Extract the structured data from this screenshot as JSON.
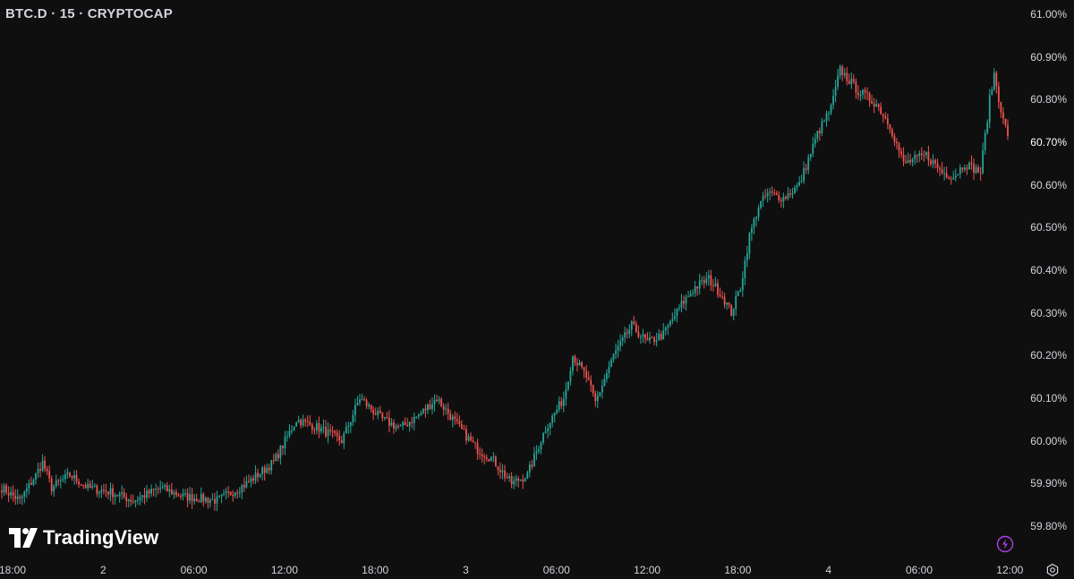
{
  "header": {
    "symbol_title": "BTC.D · 15 · CRYPTOCAP"
  },
  "branding": {
    "logo_text": "TradingView"
  },
  "icons": {
    "alert": "lightning-bolt-icon",
    "settings": "settings-icon",
    "logo": "tradingview-logo-icon"
  },
  "colors": {
    "background": "#0f0f0f",
    "up": "#26a69a",
    "down": "#ef5350",
    "text": "#d1d4dc",
    "accent": "#b03ee8"
  },
  "chart_data": {
    "type": "candlestick",
    "title": "BTC.D · 15 · CRYPTOCAP",
    "xlabel": "",
    "ylabel": "",
    "y_unit": "%",
    "ylim": [
      59.77,
      61.02
    ],
    "yticks": [
      {
        "value": 61.0,
        "label": "61.00%"
      },
      {
        "value": 60.9,
        "label": "60.90%"
      },
      {
        "value": 60.8,
        "label": "60.80%"
      },
      {
        "value": 60.7,
        "label": "60.70%"
      },
      {
        "value": 60.6,
        "label": "60.60%"
      },
      {
        "value": 60.5,
        "label": "60.50%"
      },
      {
        "value": 60.4,
        "label": "60.40%"
      },
      {
        "value": 60.3,
        "label": "60.30%"
      },
      {
        "value": 60.2,
        "label": "60.20%"
      },
      {
        "value": 60.1,
        "label": "60.10%"
      },
      {
        "value": 60.0,
        "label": "60.00%"
      },
      {
        "value": 59.9,
        "label": "59.90%"
      },
      {
        "value": 59.8,
        "label": "59.80%"
      }
    ],
    "current_value_label": "60.70%",
    "xticks": [
      "18:00",
      "2",
      "06:00",
      "12:00",
      "18:00",
      "3",
      "06:00",
      "12:00",
      "18:00",
      "4",
      "06:00",
      "12:00"
    ],
    "anchors": [
      [
        0,
        59.89
      ],
      [
        8,
        59.86
      ],
      [
        15,
        59.92
      ],
      [
        18,
        59.95
      ],
      [
        22,
        59.89
      ],
      [
        30,
        59.92
      ],
      [
        38,
        59.89
      ],
      [
        48,
        59.88
      ],
      [
        58,
        59.86
      ],
      [
        70,
        59.89
      ],
      [
        80,
        59.87
      ],
      [
        95,
        59.86
      ],
      [
        108,
        59.9
      ],
      [
        120,
        59.95
      ],
      [
        130,
        60.05
      ],
      [
        140,
        60.03
      ],
      [
        150,
        60.0
      ],
      [
        158,
        60.1
      ],
      [
        168,
        60.05
      ],
      [
        176,
        60.03
      ],
      [
        184,
        60.06
      ],
      [
        192,
        60.1
      ],
      [
        202,
        60.03
      ],
      [
        210,
        59.98
      ],
      [
        216,
        59.96
      ],
      [
        225,
        59.9
      ],
      [
        232,
        59.92
      ],
      [
        240,
        60.03
      ],
      [
        248,
        60.1
      ],
      [
        252,
        60.2
      ],
      [
        258,
        60.15
      ],
      [
        262,
        60.09
      ],
      [
        270,
        60.2
      ],
      [
        278,
        60.27
      ],
      [
        285,
        60.23
      ],
      [
        292,
        60.25
      ],
      [
        300,
        60.32
      ],
      [
        306,
        60.36
      ],
      [
        312,
        60.38
      ],
      [
        318,
        60.34
      ],
      [
        322,
        60.3
      ],
      [
        326,
        60.36
      ],
      [
        330,
        60.48
      ],
      [
        334,
        60.55
      ],
      [
        338,
        60.58
      ],
      [
        345,
        60.57
      ],
      [
        352,
        60.6
      ],
      [
        360,
        60.72
      ],
      [
        366,
        60.78
      ],
      [
        370,
        60.87
      ],
      [
        378,
        60.82
      ],
      [
        386,
        60.79
      ],
      [
        392,
        60.74
      ],
      [
        398,
        60.65
      ],
      [
        408,
        60.67
      ],
      [
        415,
        60.63
      ],
      [
        420,
        60.62
      ],
      [
        425,
        60.65
      ],
      [
        432,
        60.63
      ],
      [
        436,
        60.8
      ],
      [
        438,
        60.86
      ],
      [
        442,
        60.75
      ],
      [
        444,
        60.72
      ]
    ]
  }
}
